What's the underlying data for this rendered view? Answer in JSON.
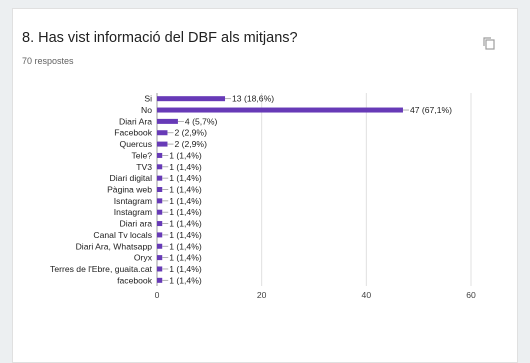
{
  "card": {
    "title": "8. Has vist informació del DBF als mitjans?",
    "responses": "70 respostes",
    "copy_icon": "copy-icon"
  },
  "colors": {
    "bar": "#673ab7",
    "grid": "#e0e0e0",
    "axis": "#9e9e9e"
  },
  "chart_data": {
    "type": "bar",
    "orientation": "horizontal",
    "categories": [
      "Si",
      "No",
      "Diari Ara",
      "Facebook",
      "Quercus",
      "Tele?",
      "TV3",
      "Diari digital",
      "Pàgina web",
      "Isntagram",
      "Instagram",
      "Diari ara",
      "Canal Tv locals",
      "Diari Ara, Whatsapp",
      "Oryx",
      "Terres de l'Ebre, guaita.cat",
      "facebook"
    ],
    "values": [
      13,
      47,
      4,
      2,
      2,
      1,
      1,
      1,
      1,
      1,
      1,
      1,
      1,
      1,
      1,
      1,
      1
    ],
    "data_labels": [
      "13 (18,6%)",
      "47 (67,1%)",
      "4 (5,7%)",
      "2 (2,9%)",
      "2 (2,9%)",
      "1 (1,4%)",
      "1 (1,4%)",
      "1 (1,4%)",
      "1 (1,4%)",
      "1 (1,4%)",
      "1 (1,4%)",
      "1 (1,4%)",
      "1 (1,4%)",
      "1 (1,4%)",
      "1 (1,4%)",
      "1 (1,4%)",
      "1 (1,4%)"
    ],
    "xlim": [
      0,
      60
    ],
    "xticks": [
      0,
      20,
      40,
      60
    ],
    "grid": true
  }
}
